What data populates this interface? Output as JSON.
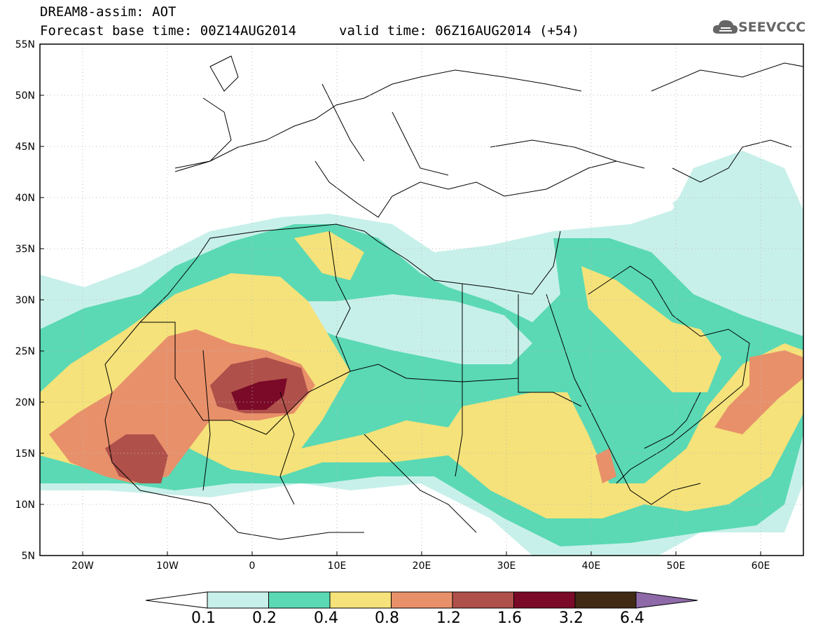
{
  "header": {
    "title_line1": "DREAM8-assim: AOT",
    "title_line2": "Forecast base time: 00Z14AUG2014",
    "valid_time": "valid time: 06Z16AUG2014 (+54)"
  },
  "logo": {
    "text": "SEEVCCC",
    "icon": "cloud-logo-icon"
  },
  "map": {
    "projection": "lat-lon",
    "lon_range": [
      -25,
      65
    ],
    "lat_range": [
      5,
      55
    ],
    "lat_labels": [
      "55N",
      "50N",
      "45N",
      "40N",
      "35N",
      "30N",
      "25N",
      "20N",
      "15N",
      "10N",
      "5N"
    ],
    "lon_labels": [
      "20W",
      "10W",
      "0",
      "10E",
      "20E",
      "30E",
      "40E",
      "50E",
      "60E"
    ]
  },
  "colorbar": {
    "colors": [
      "#c8f0ea",
      "#5ad9b4",
      "#f5e27a",
      "#e8906a",
      "#b0504a",
      "#7a0a28",
      "#402a14",
      "#8e6aa8"
    ],
    "labels": [
      "0.1",
      "0.2",
      "0.4",
      "0.8",
      "1.2",
      "1.6",
      "3.2",
      "6.4"
    ]
  }
}
